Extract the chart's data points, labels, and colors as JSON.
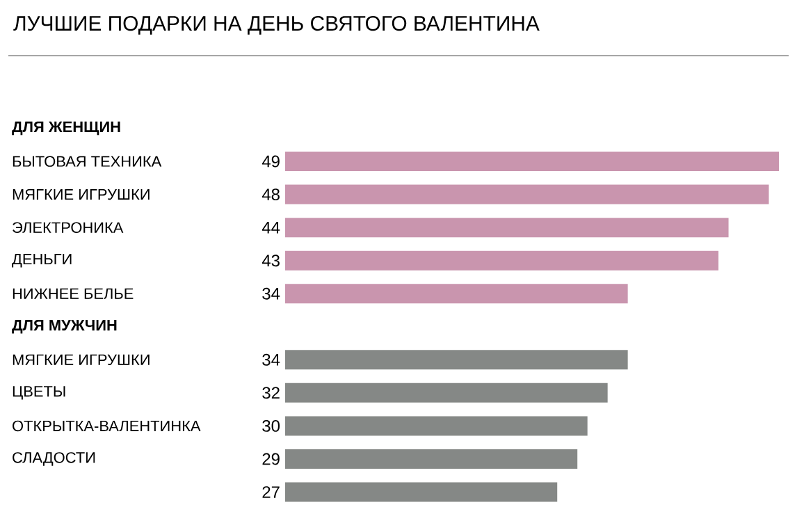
{
  "chart_data": {
    "type": "bar",
    "orientation": "horizontal",
    "title": "ЛУЧШИЕ ПОДАРКИ НА ДЕНЬ СВЯТОГО ВАЛЕНТИНА",
    "categories": [
      "ДЛЯ ЖЕНЩИН",
      "БЫТОВАЯ ТЕХНИКА",
      "МЯГКИЕ ИГРУШКИ",
      "ЭЛЕКТРОНИКА",
      "ДЕНЬГИ",
      "НИЖНЕЕ БЕЛЬЕ",
      "ДЛЯ МУЖЧИН",
      "МЯГКИЕ ИГРУШКИ",
      "ЦВЕТЫ",
      "ОТКРЫТКА-ВАЛЕНТИНКА",
      "СЛАДОСТИ",
      null
    ],
    "values": [
      null,
      49,
      48,
      44,
      43,
      34,
      null,
      34,
      32,
      30,
      29,
      27
    ],
    "colors": [
      null,
      "#c995ae",
      "#c995ae",
      "#c995ae",
      "#c995ae",
      "#c995ae",
      null,
      "#858886",
      "#858886",
      "#858886",
      "#858886",
      "#858886"
    ],
    "data_labels": true
  }
}
